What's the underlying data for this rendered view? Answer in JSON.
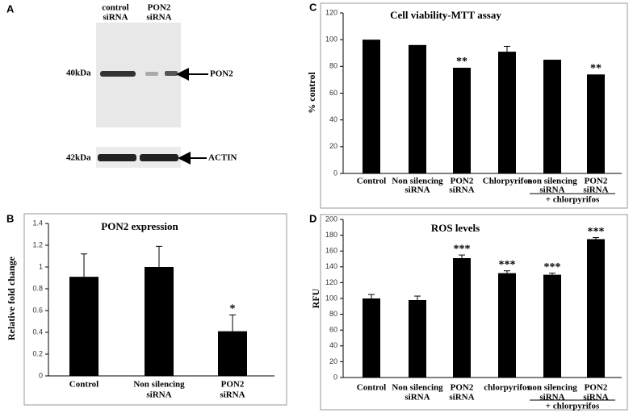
{
  "blot": {
    "label": "A",
    "lanes": [
      [
        "control",
        "siRNA"
      ],
      [
        "PON2",
        "siRNA"
      ]
    ],
    "markers": [
      "40kDa",
      "42kDa"
    ],
    "bands": [
      "PON2",
      "ACTIN"
    ]
  },
  "chart_data": [
    {
      "type": "bar",
      "label": "B",
      "title": "PON2 expression",
      "ylabel": "Relative fold change",
      "categories": [
        [
          "Control"
        ],
        [
          "Non silencing",
          "siRNA"
        ],
        [
          "PON2",
          "siRNA"
        ]
      ],
      "values": [
        0.91,
        1.0,
        0.41
      ],
      "errors": [
        0.21,
        0.19,
        0.15
      ],
      "annotations": [
        null,
        null,
        "*"
      ],
      "color": "#000000",
      "ylim": [
        0,
        1.4
      ],
      "yticks": [
        0,
        0.2,
        0.4,
        0.6,
        0.8,
        1,
        1.2,
        1.4
      ]
    },
    {
      "type": "bar",
      "label": "C",
      "title": "Cell viability-MTT assay",
      "ylabel": "% control",
      "categories": [
        [
          "Control"
        ],
        [
          "Non silencing",
          "siRNA"
        ],
        [
          "PON2",
          "siRNA"
        ],
        [
          "Chlorpyrifos"
        ],
        [
          "non silencing",
          "siRNA"
        ],
        [
          "PON2",
          "siRNA"
        ]
      ],
      "group_label": "+ chlorpyrifos",
      "values": [
        100,
        96,
        79,
        91,
        85,
        74
      ],
      "errors": [
        null,
        null,
        null,
        4,
        null,
        null
      ],
      "annotations": [
        null,
        null,
        "**",
        null,
        null,
        "**"
      ],
      "color": "#000000",
      "ylim": [
        0,
        120
      ],
      "yticks": [
        0,
        20,
        40,
        60,
        80,
        100,
        120
      ]
    },
    {
      "type": "bar",
      "label": "D",
      "title": "ROS levels",
      "ylabel": "RFU",
      "categories": [
        [
          "Control"
        ],
        [
          "Non silencing",
          "siRNA"
        ],
        [
          "PON2",
          "siRNA"
        ],
        [
          "chlorpyrifos"
        ],
        [
          "non silencing",
          "siRNA"
        ],
        [
          "PON2",
          "siRNA"
        ]
      ],
      "group_label": "+ chlorpyrifos",
      "values": [
        100,
        98,
        151,
        132,
        130,
        175
      ],
      "errors": [
        5,
        5,
        4,
        3,
        2,
        2
      ],
      "annotations": [
        null,
        null,
        "***",
        "***",
        "***",
        "***"
      ],
      "color": "#000000",
      "ylim": [
        0,
        200
      ],
      "yticks": [
        0,
        20,
        40,
        60,
        80,
        100,
        120,
        140,
        160,
        180,
        200
      ]
    }
  ]
}
